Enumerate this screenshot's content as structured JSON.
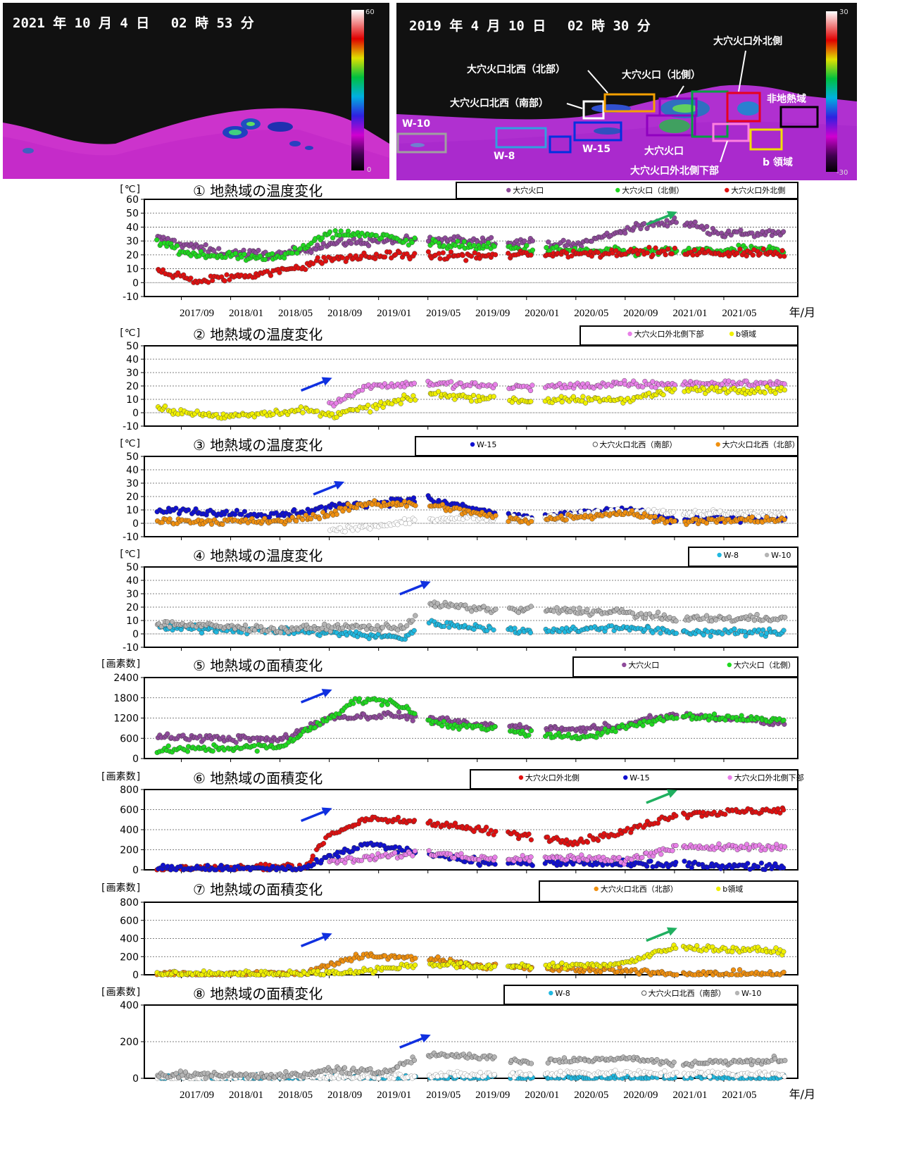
{
  "images": [
    {
      "timestamp": "2021 年 10 月 4 日　 02 時 53 分",
      "scale_max": "60",
      "scale_min": "0"
    },
    {
      "timestamp": "2019 年 4 月 10 日　 02 時 30 分",
      "scale_max": "30",
      "scale_min": "-30",
      "regions": [
        {
          "label": "大穴火口外北側",
          "color": "#e8001c"
        },
        {
          "label": "大穴火口北西（北部）",
          "color": "#f5a000"
        },
        {
          "label": "大穴火口（北側）",
          "color": "#00a040"
        },
        {
          "label": "大穴火口北西（南部）",
          "color": "#ffffff"
        },
        {
          "label": "非地熱域",
          "color": "#000000"
        },
        {
          "label": "W-10",
          "color": "#a0a0a0"
        },
        {
          "label": "W-8",
          "color": "#30a0e0"
        },
        {
          "label": "W-15",
          "color": "#0030e0"
        },
        {
          "label": "大穴火口",
          "color": "#9000c0"
        },
        {
          "label": "大穴火口外北側下部",
          "color": "#ff80e0"
        },
        {
          "label": "b 領域",
          "color": "#f0e000"
        }
      ]
    }
  ],
  "x_axis": {
    "ticks": [
      "2017/09",
      "2018/01",
      "2018/05",
      "2018/09",
      "2019/01",
      "2019/05",
      "2019/09",
      "2020/01",
      "2020/05",
      "2020/09",
      "2021/01",
      "2021/05"
    ],
    "unit": "年/月"
  },
  "colors": {
    "purple": "#8e4a9a",
    "green": "#20d820",
    "red": "#e01010",
    "pink": "#e880e8",
    "yellow": "#f0f000",
    "blue": "#1010d0",
    "white": "#ffffff",
    "orange": "#f09010",
    "cyan": "#20b8e0",
    "gray": "#b4b4b4",
    "arrow_blue": "#1030e0",
    "arrow_green": "#20b060"
  },
  "chart_data": [
    {
      "type": "scatter",
      "title": "① 地熱域の温度変化",
      "ylabel": "[℃]",
      "ylim": [
        -10,
        60
      ],
      "yticks": [
        -10,
        0,
        10,
        20,
        30,
        40,
        50,
        60
      ],
      "series": [
        {
          "name": "大穴火口",
          "color": "purple",
          "trend": [
            [
              "2017/07",
              32
            ],
            [
              "2017/12",
              22
            ],
            [
              "2018/05",
              20
            ],
            [
              "2018/09",
              28
            ],
            [
              "2019/01",
              30
            ],
            [
              "2019/09",
              31
            ],
            [
              "2020/05",
              27
            ],
            [
              "2020/09",
              38
            ],
            [
              "2021/01",
              45
            ],
            [
              "2021/05",
              35
            ],
            [
              "2021/10",
              35
            ]
          ]
        },
        {
          "name": "大穴火口（北側）",
          "color": "green",
          "trend": [
            [
              "2017/07",
              30
            ],
            [
              "2017/10",
              20
            ],
            [
              "2018/05",
              18
            ],
            [
              "2018/09",
              35
            ],
            [
              "2018/12",
              35
            ],
            [
              "2019/05",
              28
            ],
            [
              "2020/01",
              24
            ],
            [
              "2020/09",
              22
            ],
            [
              "2021/10",
              24
            ]
          ]
        },
        {
          "name": "大穴火口外北側",
          "color": "red",
          "trend": [
            [
              "2017/07",
              10
            ],
            [
              "2017/10",
              1
            ],
            [
              "2018/05",
              8
            ],
            [
              "2018/09",
              17
            ],
            [
              "2019/03",
              20
            ],
            [
              "2019/09",
              19
            ],
            [
              "2020/09",
              22
            ],
            [
              "2021/10",
              21
            ]
          ]
        }
      ],
      "arrows": [
        {
          "color": "arrow_green",
          "date": "2021/01",
          "value": 50
        }
      ]
    },
    {
      "type": "scatter",
      "title": "② 地熱域の温度変化",
      "ylabel": "[℃]",
      "ylim": [
        -10,
        50
      ],
      "yticks": [
        -10,
        0,
        10,
        20,
        30,
        40,
        50
      ],
      "series": [
        {
          "name": "大穴火口外北側下部",
          "color": "pink",
          "trend": [
            [
              "2018/09",
              5
            ],
            [
              "2018/12",
              20
            ],
            [
              "2019/05",
              22
            ],
            [
              "2020/01",
              19
            ],
            [
              "2020/09",
              21
            ],
            [
              "2021/10",
              22
            ]
          ]
        },
        {
          "name": "b領域",
          "color": "yellow",
          "trend": [
            [
              "2017/07",
              3
            ],
            [
              "2017/12",
              -3
            ],
            [
              "2018/07",
              2
            ],
            [
              "2018/09",
              -2
            ],
            [
              "2019/01",
              5
            ],
            [
              "2019/05",
              14
            ],
            [
              "2020/01",
              9
            ],
            [
              "2020/09",
              10
            ],
            [
              "2021/01",
              17
            ],
            [
              "2021/10",
              17
            ]
          ]
        }
      ],
      "arrows": [
        {
          "color": "arrow_blue",
          "date": "2018/09",
          "value": 25
        }
      ]
    },
    {
      "type": "scatter",
      "title": "③ 地熱域の温度変化",
      "ylabel": "[℃]",
      "ylim": [
        -10,
        50
      ],
      "yticks": [
        -10,
        0,
        10,
        20,
        30,
        40,
        50
      ],
      "series": [
        {
          "name": "W-15",
          "color": "blue",
          "trend": [
            [
              "2017/07",
              10
            ],
            [
              "2018/05",
              6
            ],
            [
              "2018/09",
              12
            ],
            [
              "2018/12",
              15
            ],
            [
              "2019/05",
              18
            ],
            [
              "2019/09",
              10
            ],
            [
              "2020/01",
              4
            ],
            [
              "2020/09",
              10
            ],
            [
              "2021/01",
              3
            ],
            [
              "2021/10",
              4
            ]
          ]
        },
        {
          "name": "大穴火口北西（南部）",
          "color": "white",
          "trend": [
            [
              "2018/09",
              -5
            ],
            [
              "2019/01",
              -2
            ],
            [
              "2019/05",
              3
            ],
            [
              "2019/09",
              5
            ],
            [
              "2020/01",
              3
            ],
            [
              "2020/09",
              9
            ],
            [
              "2021/10",
              6
            ]
          ]
        },
        {
          "name": "大穴火口北西（北部）",
          "color": "orange",
          "trend": [
            [
              "2017/07",
              2
            ],
            [
              "2018/05",
              1
            ],
            [
              "2018/09",
              7
            ],
            [
              "2018/12",
              15
            ],
            [
              "2019/05",
              14
            ],
            [
              "2019/09",
              7
            ],
            [
              "2020/01",
              2
            ],
            [
              "2020/09",
              8
            ],
            [
              "2021/01",
              1
            ],
            [
              "2021/10",
              3
            ]
          ]
        }
      ],
      "arrows": [
        {
          "color": "arrow_blue",
          "date": "2018/10",
          "value": 30
        }
      ]
    },
    {
      "type": "scatter",
      "title": "④ 地熱域の温度変化",
      "ylabel": "[℃]",
      "ylim": [
        -10,
        50
      ],
      "yticks": [
        -10,
        0,
        10,
        20,
        30,
        40,
        50
      ],
      "series": [
        {
          "name": "W-8",
          "color": "cyan",
          "trend": [
            [
              "2017/07",
              5
            ],
            [
              "2018/09",
              1
            ],
            [
              "2019/03",
              -3
            ],
            [
              "2019/05",
              8
            ],
            [
              "2019/09",
              5
            ],
            [
              "2020/01",
              2
            ],
            [
              "2020/09",
              5
            ],
            [
              "2021/01",
              1
            ],
            [
              "2021/10",
              1
            ]
          ]
        },
        {
          "name": "W-10",
          "color": "gray",
          "trend": [
            [
              "2017/07",
              8
            ],
            [
              "2018/05",
              3
            ],
            [
              "2018/09",
              5
            ],
            [
              "2019/03",
              5
            ],
            [
              "2019/05",
              22
            ],
            [
              "2019/09",
              19
            ],
            [
              "2020/09",
              16
            ],
            [
              "2021/01",
              11
            ],
            [
              "2021/10",
              12
            ]
          ]
        }
      ],
      "arrows": [
        {
          "color": "arrow_blue",
          "date": "2019/05",
          "value": 38
        }
      ]
    },
    {
      "type": "scatter",
      "title": "⑤ 地熱域の面積変化",
      "ylabel": "[画素数]",
      "ylim": [
        0,
        2400
      ],
      "yticks": [
        0,
        600,
        1200,
        1800,
        2400
      ],
      "series": [
        {
          "name": "大穴火口",
          "color": "purple",
          "trend": [
            [
              "2017/07",
              650
            ],
            [
              "2018/05",
              550
            ],
            [
              "2018/09",
              1200
            ],
            [
              "2019/02",
              1300
            ],
            [
              "2019/09",
              1000
            ],
            [
              "2020/05",
              850
            ],
            [
              "2020/09",
              1000
            ],
            [
              "2021/01",
              1300
            ],
            [
              "2021/10",
              1050
            ]
          ]
        },
        {
          "name": "大穴火口（北側）",
          "color": "green",
          "trend": [
            [
              "2017/07",
              250
            ],
            [
              "2018/05",
              350
            ],
            [
              "2018/09",
              1200
            ],
            [
              "2018/11",
              1700
            ],
            [
              "2019/02",
              1700
            ],
            [
              "2019/05",
              1100
            ],
            [
              "2019/09",
              900
            ],
            [
              "2020/05",
              600
            ],
            [
              "2020/09",
              950
            ],
            [
              "2021/01",
              1250
            ],
            [
              "2021/10",
              1150
            ]
          ]
        }
      ],
      "arrows": [
        {
          "color": "arrow_blue",
          "date": "2018/09",
          "value": 2000
        }
      ]
    },
    {
      "type": "scatter",
      "title": "⑥ 地熱域の面積変化",
      "ylabel": "[画素数]",
      "ylim": [
        0,
        800
      ],
      "yticks": [
        0,
        200,
        400,
        600,
        800
      ],
      "series": [
        {
          "name": "大穴火口外北側",
          "color": "red",
          "trend": [
            [
              "2017/07",
              10
            ],
            [
              "2018/07",
              30
            ],
            [
              "2018/09",
              350
            ],
            [
              "2018/12",
              500
            ],
            [
              "2019/05",
              480
            ],
            [
              "2019/09",
              400
            ],
            [
              "2020/05",
              280
            ],
            [
              "2020/09",
              380
            ],
            [
              "2021/01",
              550
            ],
            [
              "2021/10",
              600
            ]
          ]
        },
        {
          "name": "W-15",
          "color": "blue",
          "trend": [
            [
              "2017/07",
              15
            ],
            [
              "2018/07",
              10
            ],
            [
              "2018/09",
              120
            ],
            [
              "2018/12",
              260
            ],
            [
              "2019/05",
              150
            ],
            [
              "2019/09",
              80
            ],
            [
              "2020/09",
              60
            ],
            [
              "2021/01",
              50
            ],
            [
              "2021/10",
              30
            ]
          ]
        },
        {
          "name": "大穴火口外北側下部",
          "color": "pink",
          "trend": [
            [
              "2018/09",
              80
            ],
            [
              "2019/01",
              130
            ],
            [
              "2019/05",
              170
            ],
            [
              "2019/09",
              110
            ],
            [
              "2020/05",
              120
            ],
            [
              "2020/09",
              100
            ],
            [
              "2021/01",
              220
            ],
            [
              "2021/10",
              230
            ]
          ]
        }
      ],
      "arrows": [
        {
          "color": "arrow_blue",
          "date": "2018/09",
          "value": 600
        },
        {
          "color": "arrow_green",
          "date": "2021/01",
          "value": 780
        }
      ]
    },
    {
      "type": "scatter",
      "title": "⑦ 地熱域の面積変化",
      "ylabel": "[画素数]",
      "ylim": [
        0,
        800
      ],
      "yticks": [
        0,
        200,
        400,
        600,
        800
      ],
      "series": [
        {
          "name": "大穴火口北西（北部）",
          "color": "orange",
          "trend": [
            [
              "2017/07",
              5
            ],
            [
              "2018/07",
              8
            ],
            [
              "2018/09",
              120
            ],
            [
              "2018/12",
              220
            ],
            [
              "2019/05",
              180
            ],
            [
              "2019/09",
              100
            ],
            [
              "2020/05",
              60
            ],
            [
              "2020/09",
              40
            ],
            [
              "2021/01",
              10
            ],
            [
              "2021/10",
              10
            ]
          ]
        },
        {
          "name": "b領域",
          "color": "yellow",
          "trend": [
            [
              "2017/07",
              5
            ],
            [
              "2018/09",
              20
            ],
            [
              "2019/01",
              60
            ],
            [
              "2019/05",
              120
            ],
            [
              "2019/09",
              90
            ],
            [
              "2020/05",
              100
            ],
            [
              "2020/09",
              130
            ],
            [
              "2021/01",
              300
            ],
            [
              "2021/10",
              260
            ]
          ]
        }
      ],
      "arrows": [
        {
          "color": "arrow_blue",
          "date": "2018/09",
          "value": 440
        },
        {
          "color": "arrow_green",
          "date": "2021/01",
          "value": 500
        }
      ]
    },
    {
      "type": "scatter",
      "title": "⑧ 地熱域の面積変化",
      "ylabel": "[画素数]",
      "ylim": [
        0,
        400
      ],
      "yticks": [
        0,
        200,
        400
      ],
      "series": [
        {
          "name": "W-8",
          "color": "cyan",
          "trend": [
            [
              "2017/07",
              2
            ],
            [
              "2021/10",
              3
            ]
          ]
        },
        {
          "name": "大穴火口北西（南部）",
          "color": "white",
          "trend": [
            [
              "2017/07",
              5
            ],
            [
              "2019/01",
              10
            ],
            [
              "2020/05",
              30
            ],
            [
              "2021/10",
              20
            ]
          ]
        },
        {
          "name": "W-10",
          "color": "gray",
          "trend": [
            [
              "2017/07",
              20
            ],
            [
              "2018/07",
              15
            ],
            [
              "2018/09",
              50
            ],
            [
              "2019/01",
              30
            ],
            [
              "2019/05",
              130
            ],
            [
              "2019/09",
              120
            ],
            [
              "2020/01",
              90
            ],
            [
              "2020/09",
              110
            ],
            [
              "2021/01",
              80
            ],
            [
              "2021/10",
              100
            ]
          ]
        }
      ],
      "arrows": [
        {
          "color": "arrow_blue",
          "date": "2019/05",
          "value": 230
        }
      ]
    }
  ]
}
